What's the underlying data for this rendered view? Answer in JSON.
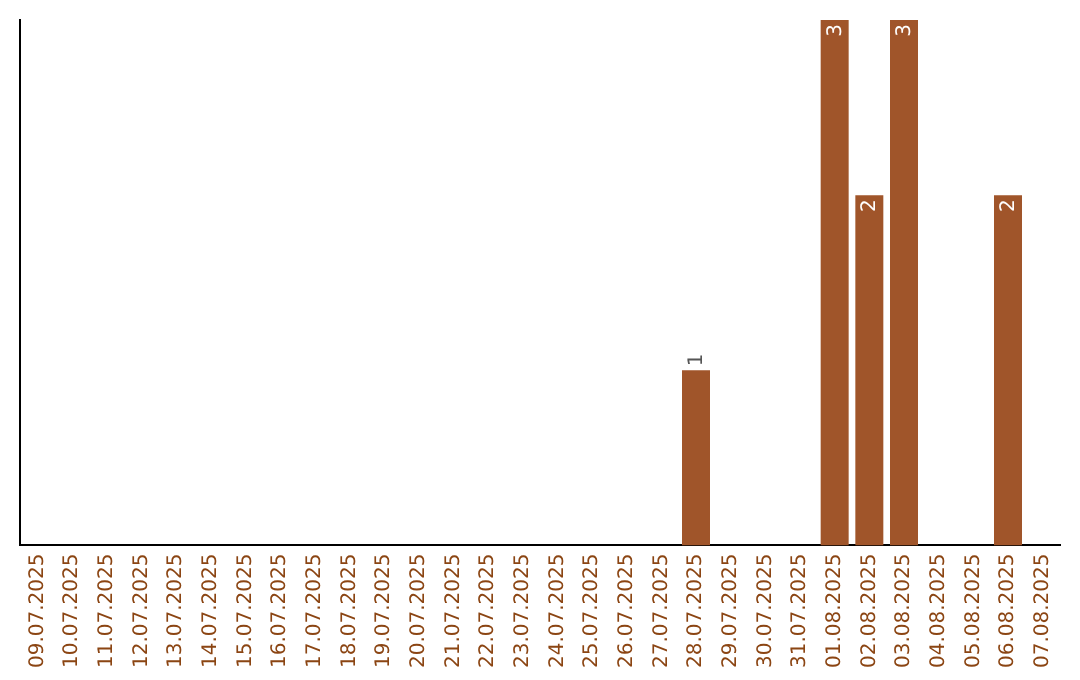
{
  "chart_data": {
    "type": "bar",
    "categories": [
      "09.07.2025",
      "10.07.2025",
      "11.07.2025",
      "12.07.2025",
      "13.07.2025",
      "14.07.2025",
      "15.07.2025",
      "16.07.2025",
      "17.07.2025",
      "18.07.2025",
      "19.07.2025",
      "20.07.2025",
      "21.07.2025",
      "22.07.2025",
      "23.07.2025",
      "24.07.2025",
      "25.07.2025",
      "26.07.2025",
      "27.07.2025",
      "28.07.2025",
      "29.07.2025",
      "30.07.2025",
      "31.07.2025",
      "01.08.2025",
      "02.08.2025",
      "03.08.2025",
      "04.08.2025",
      "05.08.2025",
      "06.08.2025",
      "07.08.2025"
    ],
    "values": [
      null,
      null,
      null,
      null,
      null,
      null,
      null,
      null,
      null,
      null,
      null,
      null,
      null,
      null,
      null,
      null,
      null,
      null,
      null,
      1,
      null,
      null,
      null,
      3,
      2,
      3,
      null,
      null,
      2,
      null
    ],
    "data_labels": true,
    "color": "#a0552a",
    "ylim": [
      0,
      3
    ],
    "tick_labels": "x",
    "grid": false,
    "legend": false
  }
}
